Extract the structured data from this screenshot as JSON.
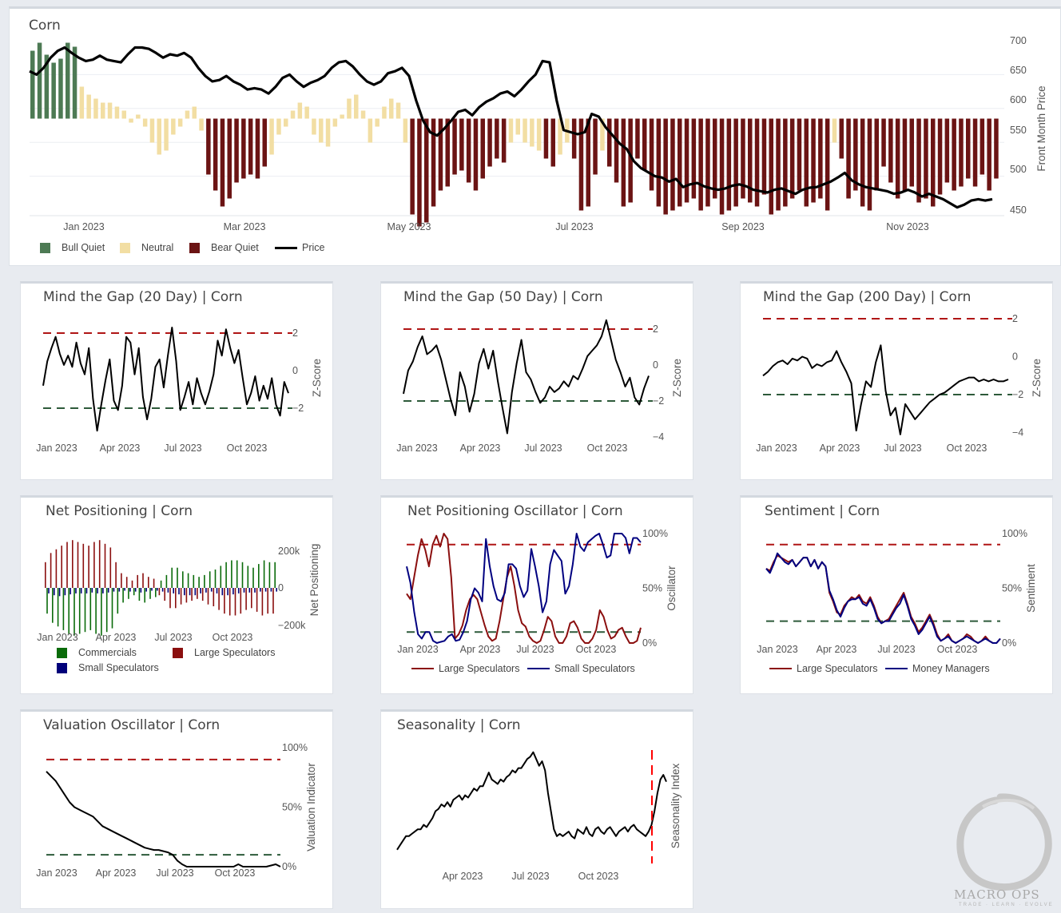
{
  "colors": {
    "bull": "#4d7a54",
    "neutral": "#f2dea3",
    "bear": "#6b1414",
    "price": "#000000",
    "red_line": "#b01515",
    "green_line": "#2d5a3a",
    "blue": "#000080",
    "comm": "#0a6b0a",
    "large_spec": "#8b0f0f",
    "small_spec": "#00007a",
    "seasonal_marker": "#ff0000"
  },
  "main": {
    "title": "Corn",
    "y_axis_title": "Front Month Price",
    "y_ticks": [
      "700",
      "650",
      "600",
      "550",
      "500",
      "450"
    ],
    "x_ticks": [
      "Jan 2023",
      "Mar 2023",
      "May 2023",
      "Jul 2023",
      "Sep 2023",
      "Nov 2023"
    ],
    "legend": {
      "bull": "Bull Quiet",
      "neutral": "Neutral",
      "bear": "Bear Quiet",
      "price": "Price"
    }
  },
  "gap20": {
    "title": "Mind the Gap (20 Day) | Corn",
    "y_axis_title": "Z-Score",
    "y_ticks": [
      "2",
      "0",
      "−2"
    ],
    "x_ticks": [
      "Jan 2023",
      "Apr 2023",
      "Jul 2023",
      "Oct 2023"
    ]
  },
  "gap50": {
    "title": "Mind the Gap (50 Day) | Corn",
    "y_axis_title": "Z-Score",
    "y_ticks": [
      "2",
      "0",
      "−2",
      "−4"
    ],
    "x_ticks": [
      "Jan 2023",
      "Apr 2023",
      "Jul 2023",
      "Oct 2023"
    ]
  },
  "gap200": {
    "title": "Mind the Gap (200 Day) | Corn",
    "y_axis_title": "Z-Score",
    "y_ticks": [
      "2",
      "0",
      "−2",
      "−4"
    ],
    "x_ticks": [
      "Jan 2023",
      "Apr 2023",
      "Jul 2023",
      "Oct 2023"
    ]
  },
  "netpos": {
    "title": "Net Positioning | Corn",
    "y_axis_title": "Net Positioning",
    "y_ticks": [
      "200k",
      "0",
      "−200k"
    ],
    "x_ticks": [
      "Jan 2023",
      "Apr 2023",
      "Jul 2023",
      "Oct 2023"
    ],
    "legend": {
      "comm": "Commercials",
      "large": "Large Speculators",
      "small": "Small Speculators"
    }
  },
  "npo": {
    "title": "Net Positioning Oscillator | Corn",
    "y_axis_title": "Oscillator",
    "y_ticks": [
      "100%",
      "50%",
      "0%"
    ],
    "x_ticks": [
      "Jan 2023",
      "Apr 2023",
      "Jul 2023",
      "Oct 2023"
    ],
    "legend": {
      "large": "Large Speculators",
      "small": "Small Speculators"
    }
  },
  "sentiment": {
    "title": "Sentiment | Corn",
    "y_axis_title": "Sentiment",
    "y_ticks": [
      "100%",
      "50%",
      "0%"
    ],
    "x_ticks": [
      "Jan 2023",
      "Apr 2023",
      "Jul 2023",
      "Oct 2023"
    ],
    "legend": {
      "large": "Large Speculators",
      "mm": "Money Managers"
    }
  },
  "valuation": {
    "title": "Valuation Oscillator | Corn",
    "y_axis_title": "Valuation Indicator",
    "y_ticks": [
      "100%",
      "50%",
      "0%"
    ],
    "x_ticks": [
      "Jan 2023",
      "Apr 2023",
      "Jul 2023",
      "Oct 2023"
    ]
  },
  "seasonality": {
    "title": "Seasonality | Corn",
    "y_axis_title": "Seasonality Index",
    "x_ticks": [
      "Apr 2023",
      "Jul 2023",
      "Oct 2023"
    ]
  },
  "logo": {
    "name": "MACRO OPS",
    "tagline": "TRADE · LEARN · EVOLVE"
  },
  "chart_data": [
    {
      "id": "main",
      "type": "bar+line",
      "title": "Corn",
      "ylabel": "Front Month Price",
      "ylim": [
        440,
        710
      ],
      "price": [
        655,
        650,
        660,
        675,
        685,
        690,
        682,
        675,
        670,
        672,
        678,
        672,
        670,
        668,
        680,
        690,
        690,
        688,
        682,
        675,
        680,
        678,
        682,
        675,
        660,
        648,
        640,
        642,
        648,
        640,
        635,
        628,
        630,
        628,
        622,
        632,
        645,
        650,
        640,
        632,
        638,
        642,
        648,
        660,
        668,
        670,
        662,
        650,
        640,
        635,
        640,
        652,
        655,
        660,
        648,
        612,
        582,
        565,
        560,
        570,
        582,
        595,
        598,
        590,
        602,
        610,
        615,
        622,
        625,
        618,
        628,
        640,
        650,
        670,
        668,
        612,
        568,
        565,
        562,
        565,
        592,
        588,
        572,
        560,
        548,
        540,
        522,
        512,
        506,
        500,
        498,
        492,
        496,
        484,
        488,
        490,
        485,
        482,
        480,
        482,
        486,
        488,
        485,
        480,
        478,
        476,
        480,
        482,
        478,
        474,
        480,
        483,
        484,
        488,
        492,
        498,
        505,
        494,
        488,
        484,
        482,
        480,
        478,
        474,
        476,
        480,
        476,
        470,
        474,
        470,
        466,
        460,
        454,
        458,
        464,
        466,
        464,
        466
      ],
      "regime_values": [
        0.85,
        0.95,
        0.8,
        0.7,
        0.75,
        0.95,
        0.9,
        0.4,
        0.3,
        0.25,
        0.2,
        0.2,
        0.15,
        0.1,
        -0.05,
        0.05,
        -0.1,
        -0.3,
        -0.45,
        -0.4,
        -0.2,
        -0.1,
        0.1,
        0.15,
        -0.15,
        -0.7,
        -0.9,
        -1.1,
        -1.0,
        -0.8,
        -0.75,
        -0.7,
        -0.75,
        -0.6,
        -0.45,
        -0.2,
        -0.1,
        0.1,
        0.2,
        0.15,
        -0.2,
        -0.3,
        -0.35,
        -0.1,
        0.05,
        0.25,
        0.3,
        0.1,
        -0.3,
        -0.1,
        0.15,
        0.25,
        0.2,
        -0.3,
        -1.2,
        -1.35,
        -1.3,
        -1.1,
        -0.9,
        -0.85,
        -0.7,
        -0.65,
        -0.8,
        -0.9,
        -0.75,
        -0.6,
        -0.5,
        -0.55,
        -0.3,
        -0.2,
        -0.3,
        -0.35,
        -0.4,
        -0.5,
        -0.6,
        -0.45,
        -0.3,
        -0.5,
        -1.15,
        -1.1,
        -0.7,
        -0.4,
        -0.6,
        -0.8,
        -1.1,
        -1.05,
        -0.5,
        -0.65,
        -0.9,
        -1.1,
        -1.2,
        -1.15,
        -1.1,
        -1.05,
        -1.0,
        -1.15,
        -1.1,
        -1.0,
        -1.2,
        -1.15,
        -1.1,
        -1.0,
        -1.05,
        -1.1,
        -0.95,
        -1.2,
        -1.15,
        -1.1,
        -1.0,
        -0.9,
        -1.1,
        -1.05,
        -1.0,
        -1.15,
        -0.3,
        -0.5,
        -1.0,
        -0.9,
        -1.1,
        -1.15,
        -0.9,
        -0.6,
        -0.8,
        -1.0,
        -0.9,
        -0.85,
        -1.05,
        -1.0,
        -1.1,
        -0.95,
        -0.8,
        -0.9,
        -0.85,
        -0.75,
        -0.85,
        -0.7,
        -0.9,
        -0.75
      ],
      "regime_note": "bars above zero = bull/neutral, below = bear/neutral"
    },
    {
      "id": "gap20",
      "type": "line",
      "ylim": [
        -4,
        3
      ],
      "thresholds": [
        2,
        -2
      ],
      "values": [
        -0.8,
        0.5,
        1.2,
        1.8,
        0.9,
        0.3,
        0.8,
        0.2,
        1.5,
        0.4,
        -0.2,
        1.2,
        -1.5,
        -3.2,
        -1.8,
        -0.5,
        0.6,
        -1.6,
        -2.1,
        -0.8,
        1.8,
        1.5,
        -0.2,
        1.2,
        -1.4,
        -2.6,
        -1.5,
        0.2,
        0.6,
        -0.9,
        0.8,
        2.3,
        0.5,
        -2.1,
        -1.4,
        -0.6,
        -1.8,
        -0.4,
        -1.2,
        -1.8,
        -1.1,
        -0.2,
        1.6,
        0.8,
        2.2,
        1.2,
        0.4,
        1.1,
        -0.4,
        -1.8,
        -1.2,
        -0.3,
        -1.6,
        -0.8,
        -1.5,
        -0.4,
        -1.8,
        -2.4,
        -0.6,
        -1.2
      ],
      "x_range": [
        "2022-11",
        "2023-12"
      ]
    },
    {
      "id": "gap50",
      "type": "line",
      "ylim": [
        -4.5,
        3
      ],
      "thresholds": [
        2.3,
        -2
      ],
      "values": [
        -1.6,
        -0.3,
        0.2,
        1.0,
        1.6,
        0.6,
        0.8,
        1.1,
        0.3,
        -0.8,
        -1.9,
        -2.8,
        -0.4,
        -1.2,
        -2.6,
        -1.6,
        0.1,
        0.9,
        -0.2,
        0.8,
        -0.9,
        -2.4,
        -3.8,
        -1.5,
        0.1,
        1.4,
        -0.4,
        -0.8,
        -1.5,
        -2.1,
        -1.8,
        -1.2,
        -1.5,
        -1.3,
        -0.9,
        -1.2,
        -0.6,
        -0.8,
        -0.2,
        0.5,
        0.8,
        1.1,
        1.6,
        2.5,
        1.4,
        0.3,
        -0.4,
        -1.2,
        -0.7,
        -1.8,
        -2.2,
        -1.3,
        -0.6
      ],
      "x_range": [
        "2022-11",
        "2023-12"
      ]
    },
    {
      "id": "gap200",
      "type": "line",
      "ylim": [
        -4.5,
        3
      ],
      "thresholds": [
        2,
        -2
      ],
      "values": [
        -1.0,
        -0.8,
        -0.5,
        -0.3,
        -0.2,
        -0.4,
        -0.1,
        -0.2,
        0.0,
        -0.1,
        -0.6,
        -0.4,
        -0.5,
        -0.3,
        -0.2,
        0.3,
        -0.3,
        -0.8,
        -1.4,
        -3.9,
        -2.5,
        -1.3,
        -1.6,
        -0.3,
        0.6,
        -1.8,
        -3.1,
        -2.7,
        -4.1,
        -2.5,
        -2.9,
        -3.3,
        -3.0,
        -2.7,
        -2.4,
        -2.2,
        -2.0,
        -1.9,
        -1.7,
        -1.5,
        -1.3,
        -1.2,
        -1.1,
        -1.1,
        -1.3,
        -1.2,
        -1.3,
        -1.2,
        -1.3,
        -1.3,
        -1.2
      ],
      "x_range": [
        "2022-11",
        "2023-12"
      ]
    },
    {
      "id": "netpos",
      "type": "bar",
      "ylim": [
        -220000,
        260000
      ],
      "series": [
        {
          "name": "Commercials"
        },
        {
          "name": "Large Speculators"
        },
        {
          "name": "Small Speculators"
        }
      ],
      "large_spec": [
        140000,
        190000,
        210000,
        230000,
        250000,
        260000,
        250000,
        240000,
        230000,
        250000,
        260000,
        240000,
        220000,
        140000,
        80000,
        60000,
        40000,
        70000,
        80000,
        60000,
        50000,
        -40000,
        -70000,
        -110000,
        -110000,
        -90000,
        -80000,
        -70000,
        -60000,
        -70000,
        -90000,
        -100000,
        -120000,
        -140000,
        -150000,
        -150000,
        -140000,
        -120000,
        -110000,
        -130000,
        -150000,
        -140000,
        -140000
      ],
      "commercials": [
        -140000,
        -190000,
        -210000,
        -230000,
        -250000,
        -260000,
        -250000,
        -240000,
        -230000,
        -250000,
        -260000,
        -240000,
        -220000,
        -140000,
        -80000,
        -60000,
        -40000,
        -70000,
        -80000,
        -60000,
        -50000,
        40000,
        70000,
        110000,
        110000,
        90000,
        80000,
        70000,
        60000,
        70000,
        90000,
        100000,
        120000,
        140000,
        150000,
        150000,
        140000,
        120000,
        110000,
        130000,
        150000,
        140000,
        140000
      ],
      "small_spec": [
        -30000,
        -40000,
        -45000,
        -40000,
        -35000,
        -30000,
        -30000,
        -30000,
        -25000,
        -30000,
        -30000,
        -25000,
        -20000,
        -20000,
        -15000,
        -20000,
        -20000,
        -25000,
        -20000,
        -15000,
        -15000,
        -20000,
        -25000,
        -30000,
        -35000,
        -40000,
        -40000,
        -40000,
        -30000,
        -25000,
        -20000,
        -30000,
        -40000,
        -40000,
        -35000,
        -30000,
        -25000,
        -25000,
        -25000,
        -20000,
        -20000,
        -20000,
        -20000
      ]
    },
    {
      "id": "npo",
      "type": "line",
      "ylim": [
        0,
        100
      ],
      "thresholds": [
        90,
        10
      ],
      "large_spec": [
        45,
        40,
        60,
        80,
        95,
        85,
        70,
        90,
        98,
        88,
        100,
        95,
        60,
        4,
        8,
        16,
        30,
        40,
        44,
        40,
        28,
        16,
        6,
        2,
        4,
        20,
        40,
        60,
        70,
        52,
        30,
        18,
        15,
        6,
        2,
        0,
        2,
        12,
        24,
        20,
        6,
        0,
        0,
        6,
        18,
        20,
        14,
        4,
        0,
        0,
        4,
        12,
        30,
        24,
        12,
        4,
        6,
        12,
        14,
        6,
        0,
        0,
        2,
        14
      ],
      "small_spec": [
        70,
        55,
        28,
        8,
        4,
        10,
        10,
        2,
        0,
        1,
        2,
        6,
        8,
        2,
        3,
        10,
        20,
        40,
        50,
        46,
        38,
        95,
        70,
        52,
        40,
        38,
        46,
        72,
        72,
        68,
        52,
        42,
        48,
        86,
        70,
        52,
        28,
        38,
        72,
        85,
        80,
        75,
        45,
        52,
        72,
        100,
        88,
        84,
        92,
        95,
        98,
        100,
        90,
        78,
        80,
        100,
        100,
        100,
        96,
        82,
        96,
        96,
        92
      ]
    },
    {
      "id": "sentiment",
      "type": "line",
      "ylim": [
        0,
        100
      ],
      "thresholds": [
        90,
        20
      ],
      "large_spec": [
        68,
        66,
        74,
        80,
        78,
        76,
        74,
        76,
        70,
        74,
        78,
        78,
        70,
        76,
        68,
        74,
        70,
        46,
        38,
        28,
        26,
        34,
        38,
        42,
        40,
        44,
        38,
        36,
        42,
        34,
        24,
        18,
        20,
        22,
        28,
        34,
        40,
        46,
        36,
        24,
        18,
        10,
        14,
        20,
        26,
        18,
        8,
        2,
        4,
        8,
        2,
        0,
        2,
        4,
        8,
        6,
        2,
        0,
        2,
        6,
        2,
        0,
        0,
        4
      ],
      "money_managers": [
        68,
        64,
        72,
        82,
        78,
        74,
        72,
        76,
        70,
        74,
        78,
        78,
        70,
        76,
        68,
        74,
        70,
        48,
        40,
        30,
        24,
        32,
        38,
        40,
        40,
        42,
        36,
        34,
        40,
        32,
        22,
        18,
        20,
        20,
        26,
        32,
        36,
        44,
        34,
        22,
        16,
        8,
        12,
        18,
        24,
        16,
        6,
        2,
        4,
        6,
        2,
        0,
        2,
        4,
        6,
        4,
        2,
        0,
        2,
        4,
        2,
        0,
        0,
        4
      ]
    },
    {
      "id": "valuation",
      "type": "line",
      "ylim": [
        0,
        100
      ],
      "thresholds": [
        90,
        10
      ],
      "values": [
        80,
        76,
        72,
        66,
        60,
        54,
        50,
        48,
        46,
        44,
        42,
        38,
        34,
        32,
        30,
        28,
        26,
        24,
        22,
        20,
        18,
        16,
        15,
        14,
        14,
        13,
        12,
        10,
        5,
        2,
        0,
        0,
        0,
        0,
        0,
        0,
        0,
        0,
        0,
        0,
        0,
        2,
        0,
        0,
        0,
        0,
        0,
        0,
        1,
        2,
        0
      ]
    },
    {
      "id": "seasonality",
      "type": "line",
      "ylim": [
        0,
        100
      ],
      "marker_x": "late Nov",
      "values": [
        10,
        14,
        18,
        22,
        22,
        24,
        26,
        28,
        28,
        32,
        30,
        34,
        38,
        44,
        46,
        50,
        48,
        52,
        48,
        54,
        56,
        58,
        54,
        58,
        56,
        60,
        64,
        62,
        66,
        66,
        72,
        78,
        72,
        70,
        68,
        72,
        70,
        74,
        76,
        80,
        78,
        82,
        82,
        86,
        90,
        92,
        96,
        90,
        84,
        88,
        80,
        60,
        44,
        28,
        22,
        24,
        22,
        24,
        26,
        22,
        20,
        28,
        26,
        24,
        30,
        24,
        22,
        28,
        30,
        26,
        24,
        28,
        30,
        26,
        22,
        26,
        28,
        30,
        26,
        30,
        32,
        28,
        26,
        24,
        22,
        26,
        32,
        44,
        60,
        72,
        76,
        70
      ]
    }
  ]
}
